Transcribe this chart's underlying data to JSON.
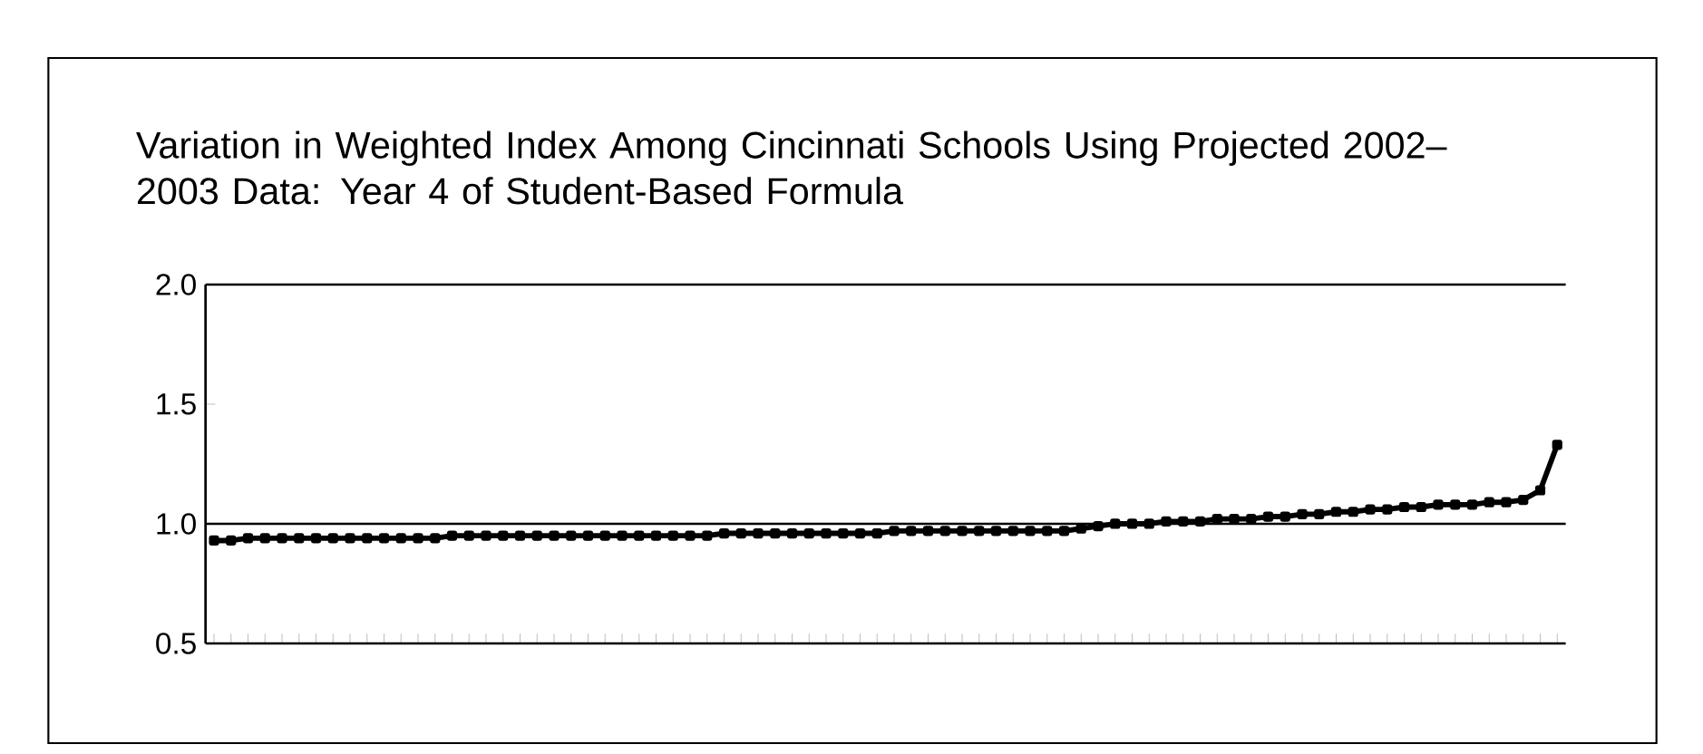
{
  "chart_data": {
    "type": "line",
    "title": "Variation in Weighted Index Among Cincinnati Schools Using Projected 2002–2003 Data: Year 4 of Student-Based Formula",
    "categories": [
      null,
      null,
      null,
      null,
      null,
      null,
      null,
      null,
      null,
      null,
      null,
      null,
      null,
      null,
      null,
      null,
      null,
      null,
      null,
      null,
      null,
      null,
      null,
      null,
      null,
      null,
      null,
      null,
      null,
      null,
      null,
      null,
      null,
      null,
      null,
      null,
      null,
      null,
      null,
      null,
      null,
      null,
      null,
      null,
      null,
      null,
      null,
      null,
      null,
      null,
      null,
      null,
      null,
      null,
      null,
      null,
      null,
      null,
      null,
      null,
      null,
      null,
      null,
      null,
      null,
      null,
      null,
      null,
      null,
      null,
      null,
      null,
      null,
      null,
      null,
      null,
      null,
      null,
      null,
      null
    ],
    "values": [
      0.93,
      0.93,
      0.94,
      0.94,
      0.94,
      0.94,
      0.94,
      0.94,
      0.94,
      0.94,
      0.94,
      0.94,
      0.94,
      0.94,
      0.95,
      0.95,
      0.95,
      0.95,
      0.95,
      0.95,
      0.95,
      0.95,
      0.95,
      0.95,
      0.95,
      0.95,
      0.95,
      0.95,
      0.95,
      0.95,
      0.96,
      0.96,
      0.96,
      0.96,
      0.96,
      0.96,
      0.96,
      0.96,
      0.96,
      0.96,
      0.97,
      0.97,
      0.97,
      0.97,
      0.97,
      0.97,
      0.97,
      0.97,
      0.97,
      0.97,
      0.97,
      0.98,
      0.99,
      1.0,
      1.0,
      1.0,
      1.01,
      1.01,
      1.01,
      1.02,
      1.02,
      1.02,
      1.03,
      1.03,
      1.04,
      1.04,
      1.05,
      1.05,
      1.06,
      1.06,
      1.07,
      1.07,
      1.08,
      1.08,
      1.08,
      1.09,
      1.09,
      1.1,
      1.14,
      1.33
    ],
    "color": "#000000",
    "marker": "square",
    "ylim": [
      0.5,
      2.0
    ],
    "yticks": [
      {
        "value": 0.5,
        "label": "0.5"
      },
      {
        "value": 1.0,
        "label": "1.0"
      },
      {
        "value": 1.5,
        "label": "1.5"
      },
      {
        "value": 2.0,
        "label": "2.0"
      }
    ],
    "ref_lines": [
      {
        "axis": "y",
        "value": 1.0
      }
    ],
    "tick_labels": "y"
  }
}
